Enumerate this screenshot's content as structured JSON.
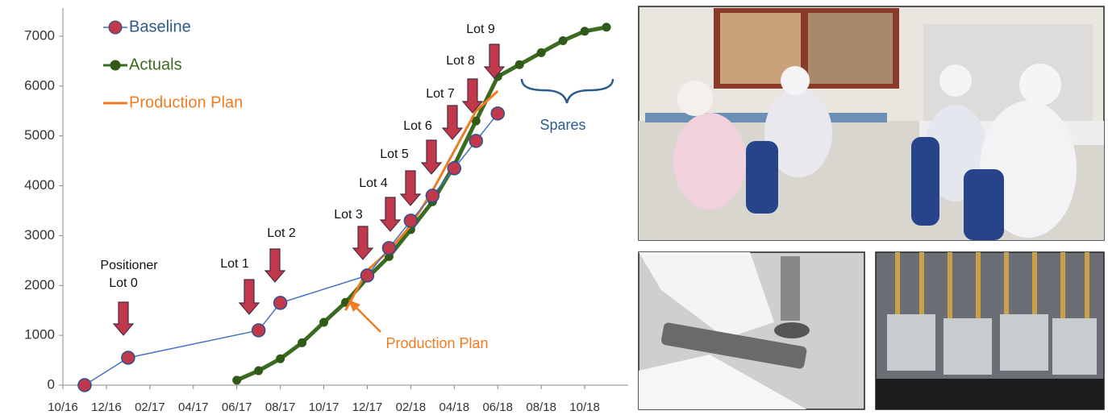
{
  "chart_data": {
    "type": "line",
    "xlim": [
      "2016-10",
      "2018-12"
    ],
    "xticks": [
      {
        "value": "2016-10",
        "label": "10/16"
      },
      {
        "value": "2016-12",
        "label": "12/16"
      },
      {
        "value": "2017-02",
        "label": "02/17"
      },
      {
        "value": "2017-04",
        "label": "04/17"
      },
      {
        "value": "2017-06",
        "label": "06/17"
      },
      {
        "value": "2017-08",
        "label": "08/17"
      },
      {
        "value": "2017-10",
        "label": "10/17"
      },
      {
        "value": "2017-12",
        "label": "12/17"
      },
      {
        "value": "2018-02",
        "label": "02/18"
      },
      {
        "value": "2018-04",
        "label": "04/18"
      },
      {
        "value": "2018-06",
        "label": "06/18"
      },
      {
        "value": "2018-08",
        "label": "08/18"
      },
      {
        "value": "2018-10",
        "label": "10/18"
      }
    ],
    "ylim": [
      0,
      7500
    ],
    "yticks": [
      0,
      1000,
      2000,
      3000,
      4000,
      5000,
      6000,
      7000
    ],
    "grid": false,
    "legend": "upper left",
    "series": [
      {
        "name": "Baseline",
        "color": "#4472c4",
        "marker_color": "#c0394b",
        "x": [
          "2016-11",
          "2017-01",
          "2017-07",
          "2017-08",
          "2017-12",
          "2018-01",
          "2018-02",
          "2018-03",
          "2018-04",
          "2018-05",
          "2018-06"
        ],
        "values": [
          0,
          550,
          1100,
          1650,
          2200,
          2750,
          3300,
          3800,
          4350,
          4900,
          5450
        ]
      },
      {
        "name": "Actuals",
        "color": "#3b6b20",
        "marker_color": "#2f5a18",
        "x": [
          "2017-06",
          "2017-07",
          "2017-08",
          "2017-09",
          "2017-10",
          "2017-11",
          "2017-12",
          "2018-01",
          "2018-02",
          "2018-03",
          "2018-04",
          "2018-05",
          "2018-06",
          "2018-07",
          "2018-08",
          "2018-09",
          "2018-10",
          "2018-11"
        ],
        "values": [
          100,
          290,
          530,
          850,
          1260,
          1660,
          2150,
          2580,
          3120,
          3680,
          4410,
          5300,
          6190,
          6430,
          6670,
          6910,
          7100,
          7180
        ]
      },
      {
        "name": "Production Plan",
        "color": "#f07c22",
        "x": [
          "2017-11",
          "2017-12",
          "2018-01",
          "2018-02",
          "2018-03",
          "2018-04",
          "2018-05",
          "2018-06"
        ],
        "values": [
          1500,
          2300,
          2700,
          3200,
          3900,
          4700,
          5500,
          5900
        ]
      }
    ],
    "annotations": [
      "Positioner",
      "Lot 0",
      "Lot 1",
      "Lot 2",
      "Lot 3",
      "Lot 4",
      "Lot 5",
      "Lot 6",
      "Lot 7",
      "Lot 8",
      "Lot 9",
      "Spares",
      "Production Plan"
    ]
  }
}
